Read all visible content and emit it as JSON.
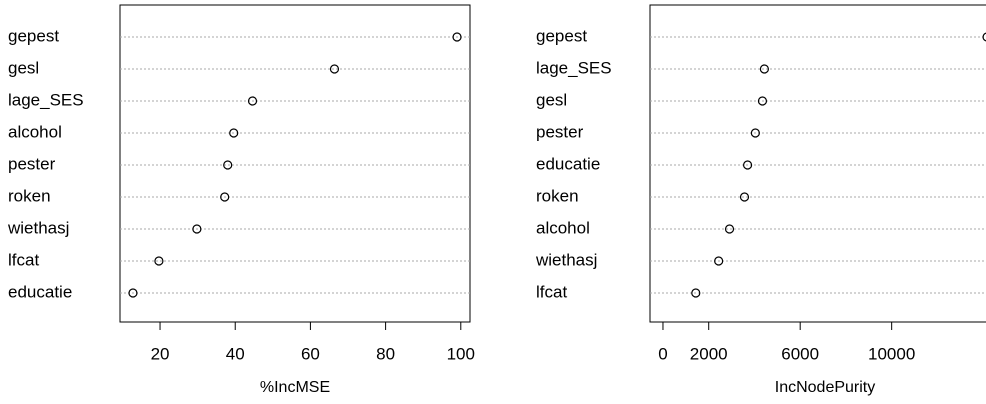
{
  "chart_data": [
    {
      "type": "dot",
      "categories": [
        "gepest",
        "gesl",
        "lage_SES",
        "alcohol",
        "pester",
        "roken",
        "wiethasj",
        "lfcat",
        "educatie"
      ],
      "values": [
        99,
        66.4,
        44.6,
        39.6,
        38,
        37.2,
        29.8,
        19.7,
        12.8
      ],
      "xlabel": "%IncMSE",
      "xlim": [
        9.35,
        102.45
      ],
      "xticks": [
        20,
        40,
        60,
        80,
        100
      ],
      "grid": true,
      "color": "#000000"
    },
    {
      "type": "dot",
      "categories": [
        "gepest",
        "lage_SES",
        "gesl",
        "pester",
        "educatie",
        "roken",
        "alcohol",
        "wiethasj",
        "lfcat"
      ],
      "values": [
        14170,
        4435,
        4350,
        4040,
        3700,
        3565,
        2910,
        2435,
        1435
      ],
      "xlabel": "IncNodePurity",
      "xlim": [
        -567,
        14737
      ],
      "xticks": [
        0,
        2000,
        6000,
        10000
      ],
      "grid": true,
      "color": "#000000"
    }
  ]
}
